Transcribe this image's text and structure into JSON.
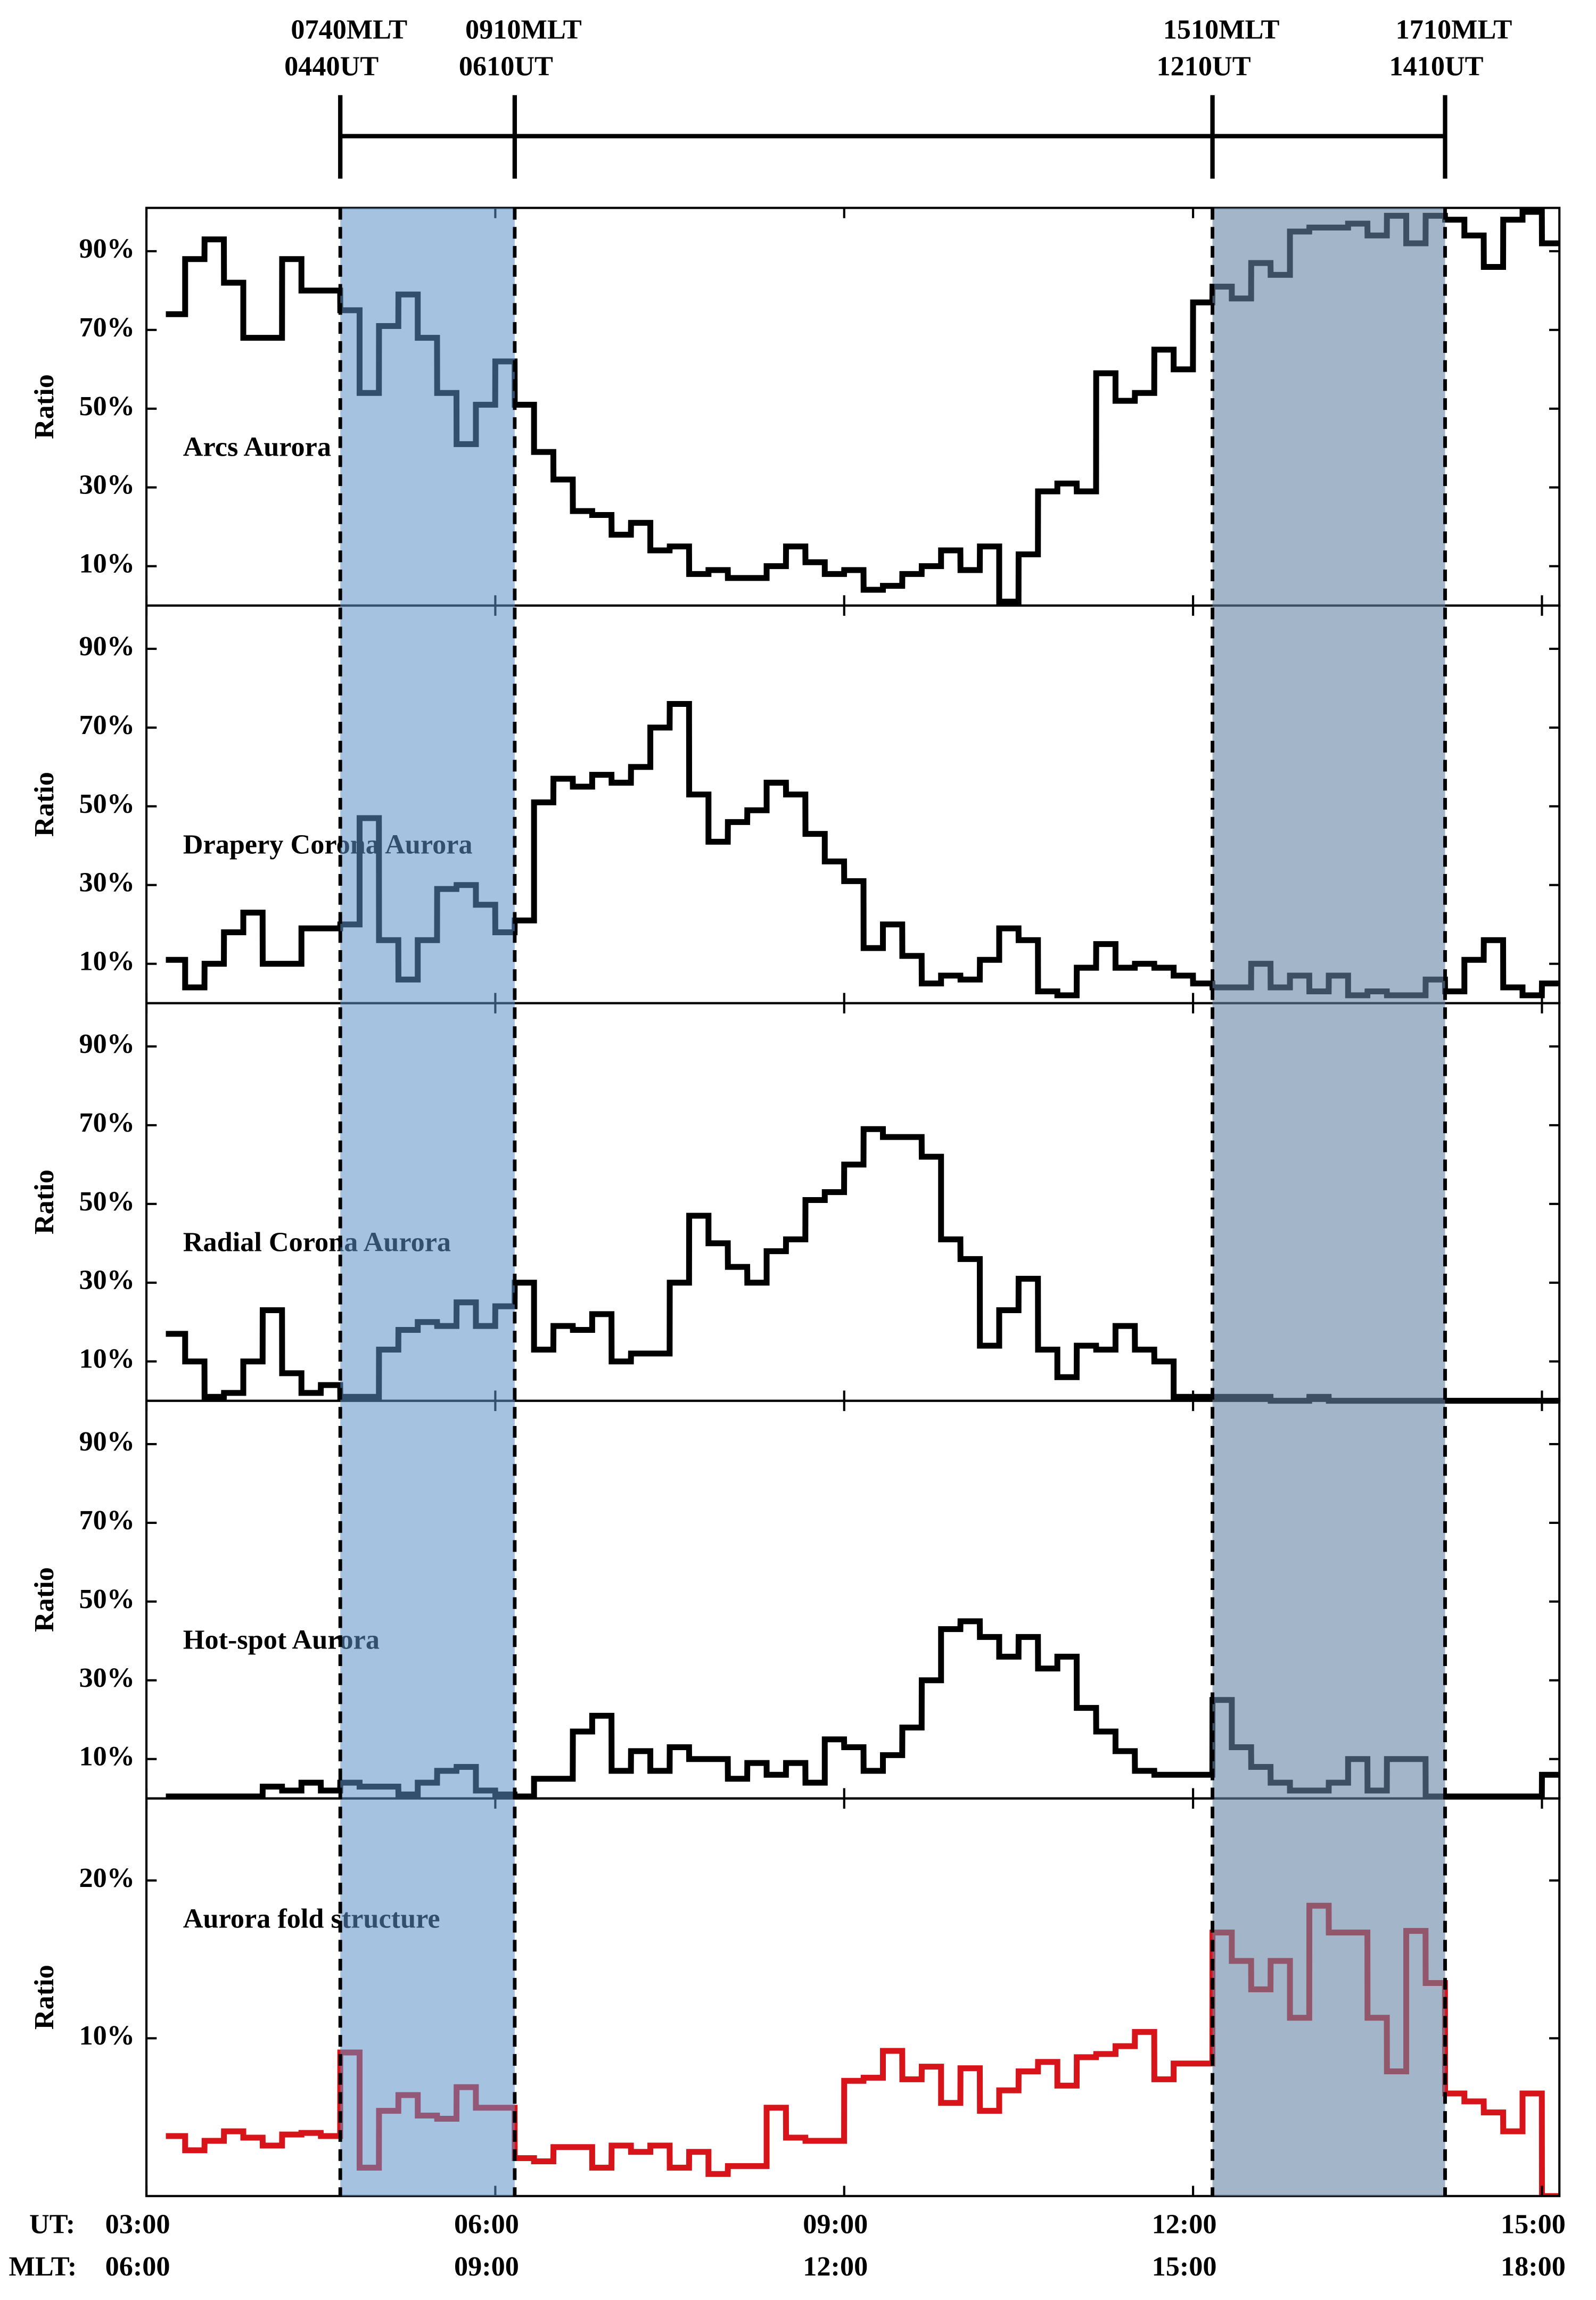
{
  "markers": [
    {
      "mlt": "0740MLT",
      "ut": "0440UT",
      "x": 4.667
    },
    {
      "mlt": "0910MLT",
      "ut": "0610UT",
      "x": 6.167
    },
    {
      "mlt": "1510MLT",
      "ut": "1210UT",
      "x": 12.167
    },
    {
      "mlt": "1710MLT",
      "ut": "1410UT",
      "x": 14.167
    }
  ],
  "shaded": [
    {
      "from": 4.667,
      "to": 6.167,
      "color": "#5b8fc7",
      "opacity": 0.55
    },
    {
      "from": 12.167,
      "to": 14.167,
      "color": "#6684a3",
      "opacity": 0.6
    }
  ],
  "x_axis": {
    "x": [
      3.167,
      3.333,
      3.5,
      3.667,
      3.833,
      4,
      4.167,
      4.333,
      4.5,
      4.667,
      4.833,
      5,
      5.167,
      5.333,
      5.5,
      5.667,
      5.833,
      6,
      6.167,
      6.333,
      6.5,
      6.667,
      6.833,
      7,
      7.167,
      7.333,
      7.5,
      7.667,
      7.833,
      8,
      8.167,
      8.333,
      8.5,
      8.667,
      8.833,
      9,
      9.167,
      9.333,
      9.5,
      9.667,
      9.833,
      10,
      10.167,
      10.333,
      10.5,
      10.667,
      10.833,
      11,
      11.167,
      11.333,
      11.5,
      11.667,
      11.833,
      12,
      12.167,
      12.333,
      12.5,
      12.667,
      12.833,
      13,
      13.167,
      13.333,
      13.5,
      13.667,
      13.833,
      14,
      14.167,
      14.333,
      14.5,
      14.667,
      14.833,
      15
    ],
    "xlim": [
      3,
      15.15
    ],
    "xticks": [
      {
        "value": 3,
        "label": "03:00"
      },
      {
        "value": 6,
        "label": "06:00"
      },
      {
        "value": 9,
        "label": "09:00"
      },
      {
        "value": 12,
        "label": "12:00"
      },
      {
        "value": 15,
        "label": "15:00"
      }
    ],
    "mlt_labels": [
      "06:00",
      "09:00",
      "12:00",
      "15:00",
      "18:00"
    ],
    "ut_label": "UT:",
    "mlt_label": "MLT:"
  },
  "chart_data": [
    {
      "type": "step",
      "title": "Arcs Aurora",
      "ylabel": "Ratio",
      "color": "#000000",
      "values": [
        74,
        88,
        93,
        82,
        68,
        68,
        88,
        80,
        80,
        75,
        54,
        71,
        79,
        68,
        54,
        41,
        51,
        62,
        51,
        39,
        32,
        24,
        23,
        18,
        21,
        14,
        15,
        8,
        9,
        7,
        7,
        10,
        15,
        11,
        8,
        9,
        4,
        5,
        8,
        10,
        14,
        9,
        15,
        1,
        13,
        29,
        31,
        29,
        59,
        52,
        54,
        65,
        60,
        77,
        81,
        78,
        87,
        84,
        95,
        96,
        96,
        97,
        94,
        99,
        92,
        99,
        98,
        94,
        86,
        98,
        100,
        92
      ],
      "ylim": [
        0,
        101
      ],
      "yticks": [
        {
          "value": 10,
          "label": "10%"
        },
        {
          "value": 30,
          "label": "30%"
        },
        {
          "value": 50,
          "label": "50%"
        },
        {
          "value": 70,
          "label": "70%"
        },
        {
          "value": 90,
          "label": "90%"
        }
      ]
    },
    {
      "type": "step",
      "title": "Drapery Corona Aurora",
      "ylabel": "Ratio",
      "color": "#000000",
      "values": [
        11,
        4,
        10,
        18,
        23,
        10,
        10,
        19,
        19,
        20,
        47,
        16,
        6,
        16,
        29,
        30,
        25,
        18,
        21,
        51,
        57,
        55,
        58,
        56,
        60,
        70,
        76,
        53,
        41,
        46,
        49,
        56,
        53,
        43,
        36,
        31,
        14,
        20,
        12,
        5,
        7,
        6,
        11,
        19,
        16,
        3,
        2,
        9,
        15,
        9,
        10,
        9,
        7,
        5,
        4,
        4,
        10,
        4,
        7,
        3,
        7,
        2,
        3,
        2,
        2,
        6,
        3,
        11,
        16,
        4,
        2,
        5
      ],
      "ylim": [
        0,
        101
      ],
      "yticks": [
        {
          "value": 10,
          "label": "10%"
        },
        {
          "value": 30,
          "label": "30%"
        },
        {
          "value": 50,
          "label": "50%"
        },
        {
          "value": 70,
          "label": "70%"
        },
        {
          "value": 90,
          "label": "90%"
        }
      ]
    },
    {
      "type": "step",
      "title": "Radial Corona Aurora",
      "ylabel": "Ratio",
      "color": "#000000",
      "values": [
        17,
        10,
        1,
        2,
        10,
        23,
        7,
        2,
        4,
        1,
        1,
        13,
        18,
        20,
        19,
        25,
        19,
        24,
        30,
        13,
        19,
        18,
        22,
        10,
        12,
        12,
        30,
        47,
        40,
        34,
        30,
        38,
        41,
        51,
        53,
        60,
        69,
        67,
        67,
        62,
        41,
        36,
        14,
        23,
        31,
        13,
        6,
        14,
        13,
        19,
        13,
        10,
        1,
        1,
        1,
        1,
        1,
        0,
        0,
        1,
        0,
        0,
        0,
        0,
        0,
        0,
        0,
        0,
        0,
        0,
        0,
        0
      ],
      "ylim": [
        0,
        101
      ],
      "yticks": [
        {
          "value": 10,
          "label": "10%"
        },
        {
          "value": 30,
          "label": "30%"
        },
        {
          "value": 50,
          "label": "50%"
        },
        {
          "value": 70,
          "label": "70%"
        },
        {
          "value": 90,
          "label": "90%"
        }
      ]
    },
    {
      "type": "step",
      "title": "Hot-spot Aurora",
      "ylabel": "Ratio",
      "color": "#000000",
      "values": [
        0.5,
        0.5,
        0.5,
        0.5,
        0.5,
        3,
        2,
        4,
        2,
        4,
        3,
        3,
        1,
        4,
        7,
        8,
        2,
        1,
        0.5,
        5,
        5,
        17,
        21,
        7,
        12,
        7,
        13,
        10,
        10,
        5,
        9,
        6,
        9,
        4,
        15,
        13,
        7,
        11,
        18,
        30,
        43,
        45,
        41,
        36,
        41,
        33,
        36,
        23,
        17,
        12,
        7,
        6,
        6,
        6,
        25,
        13,
        8,
        4,
        2,
        2,
        4,
        10,
        2,
        10,
        10,
        0.5,
        0.5,
        0.5,
        0.5,
        0.5,
        0.5,
        6
      ],
      "ylim": [
        0,
        101
      ],
      "yticks": [
        {
          "value": 10,
          "label": "10%"
        },
        {
          "value": 30,
          "label": "30%"
        },
        {
          "value": 50,
          "label": "50%"
        },
        {
          "value": 70,
          "label": "70%"
        },
        {
          "value": 90,
          "label": "90%"
        }
      ]
    },
    {
      "type": "step",
      "title": "Aurora fold structure",
      "ylabel": "Ratio",
      "color": "#d7141a",
      "values": [
        3.8,
        2.9,
        3.5,
        4.1,
        3.7,
        3.2,
        3.9,
        4.0,
        3.8,
        9.1,
        1.8,
        5.4,
        6.4,
        5.1,
        4.9,
        6.9,
        5.6,
        5.6,
        2.4,
        2.2,
        3.1,
        3.1,
        1.8,
        3.2,
        2.8,
        3.2,
        1.8,
        2.8,
        1.4,
        1.9,
        1.9,
        5.6,
        3.7,
        3.5,
        3.5,
        7.3,
        7.5,
        9.2,
        7.4,
        8.2,
        5.9,
        8.1,
        5.4,
        6.7,
        7.9,
        8.5,
        7.0,
        8.8,
        9.0,
        9.5,
        10.4,
        7.4,
        8.4,
        8.4,
        16.7,
        14.9,
        13.1,
        14.9,
        11.3,
        18.4,
        16.7,
        16.7,
        11.3,
        7.9,
        16.8,
        13.5,
        6.5,
        6.0,
        5.3,
        4.1,
        6.5,
        0
      ],
      "ylim": [
        0,
        25.2
      ],
      "yticks": [
        {
          "value": 10,
          "label": "10%"
        },
        {
          "value": 20,
          "label": "20%"
        }
      ]
    }
  ]
}
